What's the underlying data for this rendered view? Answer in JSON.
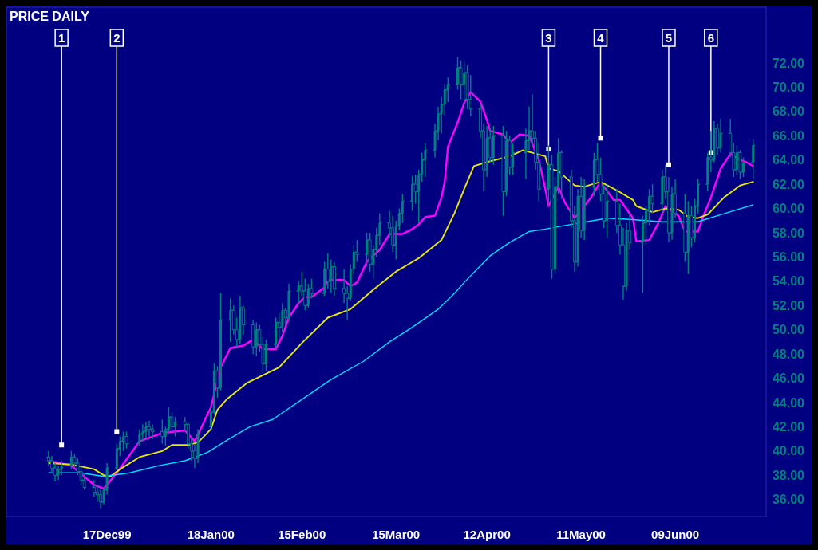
{
  "chart_data": {
    "type": "candlestick",
    "title": "PRICE DAILY",
    "color": "#008080",
    "x": [
      "1999-11-29",
      "1999-11-30",
      "1999-12-01",
      "1999-12-02",
      "1999-12-03",
      "1999-12-06",
      "1999-12-07",
      "1999-12-08",
      "1999-12-09",
      "1999-12-10",
      "1999-12-13",
      "1999-12-14",
      "1999-12-15",
      "1999-12-16",
      "1999-12-17",
      "1999-12-20",
      "1999-12-21",
      "1999-12-22",
      "1999-12-23",
      "1999-12-27",
      "1999-12-28",
      "1999-12-29",
      "1999-12-30",
      "1999-12-31",
      "2000-01-03",
      "2000-01-04",
      "2000-01-05",
      "2000-01-06",
      "2000-01-07",
      "2000-01-10",
      "2000-01-11",
      "2000-01-12",
      "2000-01-13",
      "2000-01-14",
      "2000-01-18",
      "2000-01-19",
      "2000-01-20",
      "2000-01-21",
      "2000-01-24",
      "2000-01-25",
      "2000-01-26",
      "2000-01-27",
      "2000-01-28",
      "2000-01-31",
      "2000-02-01",
      "2000-02-02",
      "2000-02-03",
      "2000-02-04",
      "2000-02-07",
      "2000-02-08",
      "2000-02-09",
      "2000-02-10",
      "2000-02-11",
      "2000-02-14",
      "2000-02-15",
      "2000-02-16",
      "2000-02-17",
      "2000-02-18",
      "2000-02-22",
      "2000-02-23",
      "2000-02-24",
      "2000-02-25",
      "2000-02-28",
      "2000-02-29",
      "2000-03-01",
      "2000-03-02",
      "2000-03-03",
      "2000-03-06",
      "2000-03-07",
      "2000-03-08",
      "2000-03-09",
      "2000-03-10",
      "2000-03-13",
      "2000-03-14",
      "2000-03-15",
      "2000-03-16",
      "2000-03-17",
      "2000-03-20",
      "2000-03-21",
      "2000-03-22",
      "2000-03-23",
      "2000-03-24",
      "2000-03-27",
      "2000-03-28",
      "2000-03-29",
      "2000-03-30",
      "2000-03-31",
      "2000-04-03",
      "2000-04-04",
      "2000-04-05",
      "2000-04-06",
      "2000-04-07",
      "2000-04-10",
      "2000-04-11",
      "2000-04-12",
      "2000-04-13",
      "2000-04-14",
      "2000-04-17",
      "2000-04-18",
      "2000-04-19",
      "2000-04-20",
      "2000-04-24",
      "2000-04-25",
      "2000-04-26",
      "2000-04-27",
      "2000-04-28",
      "2000-05-01",
      "2000-05-02",
      "2000-05-03",
      "2000-05-04",
      "2000-05-05",
      "2000-05-08",
      "2000-05-09",
      "2000-05-10",
      "2000-05-11",
      "2000-05-12",
      "2000-05-15",
      "2000-05-16",
      "2000-05-17",
      "2000-05-18",
      "2000-05-19",
      "2000-05-22",
      "2000-05-23",
      "2000-05-24",
      "2000-05-25",
      "2000-05-26",
      "2000-05-30",
      "2000-05-31",
      "2000-06-01",
      "2000-06-02",
      "2000-06-05",
      "2000-06-06",
      "2000-06-07",
      "2000-06-08",
      "2000-06-09",
      "2000-06-12",
      "2000-06-13",
      "2000-06-14",
      "2000-06-15",
      "2000-06-16",
      "2000-06-19",
      "2000-06-20",
      "2000-06-21",
      "2000-06-22",
      "2000-06-23",
      "2000-06-26",
      "2000-06-27",
      "2000-06-28",
      "2000-06-29",
      "2000-06-30",
      "2000-07-03"
    ],
    "ohlc": [
      [
        39.5,
        40.0,
        38.8,
        39.2
      ],
      [
        39.2,
        39.6,
        38.2,
        38.6
      ],
      [
        38.6,
        39.0,
        37.5,
        38.0
      ],
      [
        38.0,
        38.8,
        37.6,
        38.5
      ],
      [
        38.5,
        39.2,
        38.0,
        38.8
      ],
      [
        38.8,
        40.0,
        38.5,
        39.5
      ],
      [
        39.5,
        39.8,
        38.6,
        39.0
      ],
      [
        39.0,
        39.4,
        38.0,
        38.3
      ],
      [
        38.3,
        38.8,
        37.2,
        37.6
      ],
      [
        37.6,
        38.2,
        36.8,
        37.0
      ],
      [
        37.0,
        37.6,
        36.2,
        36.6
      ],
      [
        36.6,
        37.2,
        35.8,
        36.4
      ],
      [
        36.4,
        36.8,
        35.3,
        35.8
      ],
      [
        35.8,
        37.0,
        35.6,
        36.8
      ],
      [
        36.8,
        39.0,
        36.4,
        38.6
      ],
      [
        38.6,
        40.6,
        38.4,
        40.2
      ],
      [
        40.2,
        41.2,
        39.6,
        40.8
      ],
      [
        40.8,
        41.6,
        40.0,
        41.2
      ],
      [
        41.2,
        41.6,
        40.2,
        40.6
      ],
      [
        40.6,
        41.8,
        40.4,
        41.4
      ],
      [
        41.4,
        42.2,
        40.8,
        41.6
      ],
      [
        41.6,
        42.4,
        41.0,
        42.0
      ],
      [
        42.0,
        42.5,
        41.2,
        41.8
      ],
      [
        41.8,
        42.2,
        41.0,
        41.6
      ],
      [
        41.6,
        42.6,
        40.6,
        41.2
      ],
      [
        41.2,
        42.0,
        40.4,
        41.8
      ],
      [
        41.8,
        43.6,
        41.4,
        42.8
      ],
      [
        42.8,
        43.2,
        41.6,
        42.0
      ],
      [
        42.0,
        42.8,
        41.2,
        42.4
      ],
      [
        42.4,
        42.8,
        41.6,
        42.2
      ],
      [
        42.2,
        42.4,
        40.2,
        40.6
      ],
      [
        40.6,
        41.2,
        39.2,
        40.0
      ],
      [
        40.0,
        40.6,
        38.6,
        39.4
      ],
      [
        39.4,
        41.8,
        39.0,
        41.4
      ],
      [
        42.0,
        43.6,
        41.8,
        43.2
      ],
      [
        43.2,
        47.2,
        43.0,
        46.6
      ],
      [
        46.6,
        47.0,
        44.4,
        45.2
      ],
      [
        45.2,
        53.0,
        45.0,
        50.8
      ],
      [
        50.8,
        52.6,
        49.0,
        51.6
      ],
      [
        51.6,
        52.0,
        49.6,
        50.0
      ],
      [
        50.0,
        51.0,
        48.6,
        49.2
      ],
      [
        49.2,
        52.8,
        48.8,
        51.8
      ],
      [
        51.8,
        52.0,
        49.6,
        50.4
      ],
      [
        50.4,
        50.8,
        48.0,
        48.6
      ],
      [
        48.6,
        50.6,
        47.8,
        50.0
      ],
      [
        50.0,
        50.4,
        48.2,
        48.8
      ],
      [
        48.8,
        49.4,
        46.4,
        47.2
      ],
      [
        47.2,
        49.2,
        46.6,
        48.8
      ],
      [
        48.8,
        51.0,
        48.4,
        50.6
      ],
      [
        50.6,
        51.4,
        49.2,
        50.2
      ],
      [
        50.2,
        52.2,
        49.8,
        51.6
      ],
      [
        51.6,
        51.8,
        50.4,
        51.0
      ],
      [
        51.0,
        53.8,
        50.6,
        53.2
      ],
      [
        53.2,
        54.0,
        52.2,
        53.6
      ],
      [
        53.6,
        54.8,
        52.8,
        53.2
      ],
      [
        53.2,
        54.2,
        51.6,
        52.0
      ],
      [
        52.0,
        53.8,
        51.8,
        53.4
      ],
      [
        53.4,
        54.2,
        52.6,
        53.0
      ],
      [
        53.0,
        55.6,
        52.8,
        55.0
      ],
      [
        55.0,
        56.3,
        53.4,
        54.0
      ],
      [
        54.0,
        55.8,
        53.0,
        55.2
      ],
      [
        55.2,
        55.6,
        52.8,
        53.4
      ],
      [
        53.4,
        55.0,
        52.2,
        53.0
      ],
      [
        53.0,
        53.6,
        50.8,
        52.6
      ],
      [
        52.6,
        55.4,
        52.4,
        55.0
      ],
      [
        55.0,
        57.0,
        54.6,
        56.4
      ],
      [
        56.4,
        57.4,
        55.6,
        56.2
      ],
      [
        56.2,
        58.0,
        55.2,
        57.4
      ],
      [
        57.4,
        58.0,
        54.8,
        55.4
      ],
      [
        55.4,
        57.0,
        54.2,
        56.6
      ],
      [
        56.6,
        58.4,
        56.0,
        57.8
      ],
      [
        57.8,
        59.6,
        57.0,
        58.8
      ],
      [
        58.8,
        59.8,
        57.6,
        58.4
      ],
      [
        58.4,
        59.4,
        56.4,
        57.0
      ],
      [
        57.0,
        59.0,
        55.8,
        58.6
      ],
      [
        58.6,
        60.0,
        58.2,
        59.6
      ],
      [
        59.6,
        61.2,
        58.8,
        60.6
      ],
      [
        60.6,
        62.7,
        59.8,
        62.0
      ],
      [
        62.0,
        62.8,
        60.4,
        61.4
      ],
      [
        61.4,
        63.2,
        58.8,
        62.8
      ],
      [
        62.8,
        64.6,
        62.2,
        64.0
      ],
      [
        64.0,
        65.4,
        62.6,
        64.8
      ],
      [
        64.8,
        67.0,
        64.2,
        66.4
      ],
      [
        66.4,
        68.4,
        65.6,
        67.8
      ],
      [
        67.8,
        69.2,
        66.2,
        68.6
      ],
      [
        68.6,
        70.2,
        67.6,
        69.8
      ],
      [
        69.8,
        70.8,
        68.8,
        70.2
      ],
      [
        70.2,
        72.5,
        69.8,
        71.6
      ],
      [
        71.6,
        72.2,
        69.0,
        70.2
      ],
      [
        70.2,
        72.1,
        68.6,
        71.2
      ],
      [
        71.2,
        71.8,
        68.2,
        69.0
      ],
      [
        69.0,
        71.0,
        67.6,
        68.2
      ],
      [
        68.2,
        68.6,
        65.8,
        66.4
      ],
      [
        66.4,
        67.0,
        61.4,
        63.2
      ],
      [
        63.2,
        66.8,
        62.6,
        65.8
      ],
      [
        65.8,
        66.6,
        63.8,
        64.2
      ],
      [
        64.2,
        66.8,
        63.6,
        66.0
      ],
      [
        66.0,
        66.8,
        59.4,
        61.4
      ],
      [
        61.4,
        66.4,
        61.0,
        65.6
      ],
      [
        65.6,
        66.0,
        62.8,
        63.4
      ],
      [
        63.4,
        65.4,
        62.8,
        64.6
      ],
      [
        64.6,
        66.6,
        62.4,
        65.6
      ],
      [
        65.6,
        68.4,
        64.8,
        66.4
      ],
      [
        66.4,
        69.4,
        65.0,
        65.8
      ],
      [
        65.8,
        66.4,
        63.2,
        63.8
      ],
      [
        63.8,
        65.4,
        60.6,
        61.6
      ],
      [
        61.6,
        65.2,
        60.2,
        63.6
      ],
      [
        63.6,
        64.4,
        54.2,
        55.0
      ],
      [
        55.0,
        62.6,
        54.6,
        61.8
      ],
      [
        61.8,
        65.8,
        61.2,
        64.6
      ],
      [
        64.6,
        64.8,
        60.8,
        62.6
      ],
      [
        62.6,
        63.2,
        58.4,
        59.0
      ],
      [
        59.0,
        60.2,
        54.8,
        55.6
      ],
      [
        55.6,
        61.6,
        55.2,
        61.0
      ],
      [
        61.0,
        62.6,
        57.6,
        58.2
      ],
      [
        58.2,
        62.4,
        57.4,
        61.8
      ],
      [
        61.8,
        64.6,
        61.0,
        64.0
      ],
      [
        64.0,
        65.4,
        62.2,
        62.8
      ],
      [
        62.8,
        64.2,
        60.6,
        61.2
      ],
      [
        61.2,
        62.0,
        58.4,
        59.0
      ],
      [
        59.0,
        62.0,
        57.6,
        60.6
      ],
      [
        60.6,
        61.6,
        58.0,
        58.6
      ],
      [
        58.6,
        60.4,
        56.2,
        57.0
      ],
      [
        57.0,
        58.4,
        52.5,
        53.6
      ],
      [
        53.6,
        58.8,
        53.2,
        58.2
      ],
      [
        58.2,
        59.6,
        56.6,
        57.2
      ],
      [
        57.2,
        59.4,
        53.0,
        58.8
      ],
      [
        58.8,
        60.2,
        57.0,
        59.8
      ],
      [
        59.8,
        61.6,
        58.6,
        61.0
      ],
      [
        61.0,
        62.0,
        59.6,
        60.4
      ],
      [
        60.4,
        63.2,
        59.6,
        62.6
      ],
      [
        62.6,
        63.6,
        60.8,
        61.4
      ],
      [
        61.4,
        62.6,
        57.2,
        58.0
      ],
      [
        58.0,
        61.8,
        57.4,
        61.2
      ],
      [
        61.2,
        62.4,
        59.2,
        59.6
      ],
      [
        59.6,
        61.2,
        55.6,
        56.4
      ],
      [
        56.4,
        60.6,
        54.6,
        59.4
      ],
      [
        59.4,
        60.2,
        56.8,
        57.6
      ],
      [
        57.6,
        60.8,
        57.2,
        60.2
      ],
      [
        60.2,
        62.4,
        59.6,
        62.0
      ],
      [
        62.0,
        64.6,
        61.4,
        64.2
      ],
      [
        64.2,
        66.4,
        63.0,
        64.0
      ],
      [
        64.0,
        67.2,
        63.8,
        66.6
      ],
      [
        66.6,
        67.0,
        64.4,
        65.0
      ],
      [
        65.0,
        67.4,
        64.6,
        66.2
      ],
      [
        66.2,
        67.4,
        64.2,
        64.6
      ],
      [
        64.6,
        65.4,
        62.6,
        63.2
      ],
      [
        63.2,
        65.2,
        62.8,
        64.6
      ],
      [
        64.6,
        64.8,
        62.4,
        63.0
      ],
      [
        63.0,
        64.2,
        62.6,
        63.8
      ],
      [
        63.8,
        65.7,
        62.4,
        65.2
      ]
    ],
    "series": [
      {
        "type": "line",
        "color": "#ff00ff",
        "x": [
          "1999-11-29",
          "1999-12-06",
          "1999-12-13",
          "1999-12-16",
          "1999-12-20",
          "1999-12-27",
          "2000-01-03",
          "2000-01-10",
          "2000-01-13",
          "2000-01-18",
          "2000-01-21",
          "2000-01-24",
          "2000-01-28",
          "2000-01-31",
          "2000-02-03",
          "2000-02-07",
          "2000-02-09",
          "2000-02-11",
          "2000-02-14",
          "2000-02-16",
          "2000-02-18",
          "2000-02-22",
          "2000-02-23",
          "2000-02-25",
          "2000-02-28",
          "2000-03-01",
          "2000-03-03",
          "2000-03-06",
          "2000-03-08",
          "2000-03-10",
          "2000-03-13",
          "2000-03-15",
          "2000-03-17",
          "2000-03-20",
          "2000-03-22",
          "2000-03-24",
          "2000-03-27",
          "2000-03-29",
          "2000-03-30",
          "2000-03-31",
          "2000-04-03",
          "2000-04-05",
          "2000-04-07",
          "2000-04-10",
          "2000-04-12",
          "2000-04-13",
          "2000-04-17",
          "2000-04-19",
          "2000-04-22",
          "2000-04-25",
          "2000-04-28",
          "2000-04-30",
          "2000-05-01",
          "2000-05-04",
          "2000-05-06",
          "2000-05-09",
          "2000-05-12",
          "2000-05-14",
          "2000-05-17",
          "2000-05-21",
          "2000-05-23",
          "2000-05-27",
          "2000-05-28",
          "2000-06-01",
          "2000-06-04",
          "2000-06-06",
          "2000-06-10",
          "2000-06-12",
          "2000-06-16",
          "2000-06-18",
          "2000-06-20",
          "2000-06-23",
          "2000-06-26",
          "2000-06-29",
          "2000-07-01",
          "2000-07-03"
        ],
        "values": [
          39.2,
          38.8,
          37.2,
          36.9,
          38.2,
          40.8,
          41.5,
          41.7,
          40.8,
          43.6,
          46.9,
          48.5,
          48.7,
          49.2,
          48.4,
          48.4,
          49.5,
          51.0,
          52.2,
          52.7,
          52.7,
          53.5,
          54.1,
          54.1,
          54.1,
          53.6,
          53.9,
          55.6,
          56.1,
          56.6,
          57.9,
          57.9,
          57.9,
          58.3,
          58.7,
          59.3,
          59.4,
          60.9,
          62.2,
          65.1,
          67.1,
          68.7,
          69.6,
          68.8,
          67.3,
          66.4,
          66.1,
          65.4,
          66.1,
          66.0,
          64.0,
          61.6,
          60.2,
          61.8,
          60.5,
          59.2,
          60.2,
          60.9,
          62.2,
          60.7,
          60.7,
          59.2,
          57.3,
          57.4,
          58.9,
          60.2,
          59.4,
          58.1,
          58.1,
          59.6,
          60.9,
          63.3,
          64.5,
          64.0,
          63.8,
          63.5
        ]
      },
      {
        "type": "line",
        "color": "#e8e800",
        "x": [
          "1999-11-29",
          "1999-12-06",
          "1999-12-13",
          "1999-12-16",
          "1999-12-18",
          "1999-12-21",
          "1999-12-27",
          "2000-01-03",
          "2000-01-06",
          "2000-01-11",
          "2000-01-14",
          "2000-01-18",
          "2000-01-20",
          "2000-01-23",
          "2000-01-29",
          "2000-02-08",
          "2000-02-15",
          "2000-02-23",
          "2000-03-01",
          "2000-03-08",
          "2000-03-15",
          "2000-03-22",
          "2000-03-29",
          "2000-04-02",
          "2000-04-05",
          "2000-04-08",
          "2000-04-13",
          "2000-04-19",
          "2000-04-23",
          "2000-04-26",
          "2000-04-30",
          "2000-05-01",
          "2000-05-04",
          "2000-05-09",
          "2000-05-12",
          "2000-05-17",
          "2000-05-22",
          "2000-05-27",
          "2000-05-28",
          "2000-06-02",
          "2000-06-06",
          "2000-06-10",
          "2000-06-13",
          "2000-06-16",
          "2000-06-19",
          "2000-06-24",
          "2000-06-29",
          "2000-07-03"
        ],
        "values": [
          39.0,
          38.9,
          38.5,
          38.0,
          37.9,
          38.5,
          39.5,
          40.0,
          40.5,
          40.5,
          40.7,
          41.8,
          43.4,
          44.3,
          45.6,
          46.9,
          48.9,
          51.0,
          51.7,
          53.3,
          54.8,
          55.9,
          57.4,
          59.6,
          61.6,
          63.5,
          63.9,
          64.3,
          64.8,
          64.6,
          64.3,
          63.3,
          63.1,
          61.9,
          61.8,
          62.2,
          61.5,
          60.7,
          60.2,
          59.7,
          60.0,
          59.9,
          59.3,
          59.2,
          59.5,
          60.9,
          61.9,
          62.2
        ]
      },
      {
        "type": "line",
        "color": "#00e0ff",
        "x": [
          "1999-11-29",
          "1999-12-09",
          "1999-12-16",
          "1999-12-24",
          "2000-01-02",
          "2000-01-10",
          "2000-01-17",
          "2000-01-23",
          "2000-01-30",
          "2000-02-06",
          "2000-02-24",
          "2000-03-05",
          "2000-03-13",
          "2000-03-20",
          "2000-03-28",
          "2000-04-02",
          "2000-04-05",
          "2000-04-13",
          "2000-04-19",
          "2000-04-25",
          "2000-04-30",
          "2000-05-04",
          "2000-05-19",
          "2000-05-26",
          "2000-06-05",
          "2000-06-16",
          "2000-06-22",
          "2000-06-28",
          "2000-07-03"
        ],
        "values": [
          38.2,
          38.2,
          37.9,
          38.2,
          38.8,
          39.2,
          39.9,
          40.9,
          42.0,
          42.6,
          45.9,
          47.4,
          49.0,
          50.2,
          51.7,
          53.0,
          53.9,
          56.1,
          57.2,
          58.1,
          58.3,
          58.5,
          59.2,
          59.1,
          58.9,
          58.9,
          59.4,
          59.9,
          60.3
        ]
      }
    ],
    "xlim": [
      "1999-11-16",
      "2000-07-07"
    ],
    "xticks": [
      {
        "value": "1999-12-17",
        "label": "17Dec99"
      },
      {
        "value": "2000-01-18",
        "label": "18Jan00"
      },
      {
        "value": "2000-02-15",
        "label": "15Feb00"
      },
      {
        "value": "2000-03-15",
        "label": "15Mar00"
      },
      {
        "value": "2000-04-12",
        "label": "12Apr00"
      },
      {
        "value": "2000-05-11",
        "label": "11May00"
      },
      {
        "value": "2000-06-09",
        "label": "09Jun00"
      }
    ],
    "ylim": [
      34.6,
      76.6
    ],
    "yticks": [
      {
        "value": 36,
        "label": "36.00"
      },
      {
        "value": 38,
        "label": "38.00"
      },
      {
        "value": 40,
        "label": "40.00"
      },
      {
        "value": 42,
        "label": "42.00"
      },
      {
        "value": 44,
        "label": "44.00"
      },
      {
        "value": 46,
        "label": "46.00"
      },
      {
        "value": 48,
        "label": "48.00"
      },
      {
        "value": 50,
        "label": "50.00"
      },
      {
        "value": 52,
        "label": "52.00"
      },
      {
        "value": 54,
        "label": "54.00"
      },
      {
        "value": 56,
        "label": "56.00"
      },
      {
        "value": 58,
        "label": "58.00"
      },
      {
        "value": 60,
        "label": "60.00"
      },
      {
        "value": 62,
        "label": "62.00"
      },
      {
        "value": 64,
        "label": "64.00"
      },
      {
        "value": 66,
        "label": "66.00"
      },
      {
        "value": 68,
        "label": "68.00"
      },
      {
        "value": 70,
        "label": "70.00"
      },
      {
        "value": 72,
        "label": "72.00"
      }
    ],
    "annotations": [
      {
        "text": "1",
        "x": "1999-12-03",
        "y": 40.5
      },
      {
        "text": "2",
        "x": "1999-12-20",
        "y": 41.6
      },
      {
        "text": "3",
        "x": "2000-05-01",
        "y": 64.9
      },
      {
        "text": "4",
        "x": "2000-05-17",
        "y": 65.8
      },
      {
        "text": "5",
        "x": "2000-06-07",
        "y": 63.6
      },
      {
        "text": "6",
        "x": "2000-06-20",
        "y": 64.6
      }
    ]
  }
}
